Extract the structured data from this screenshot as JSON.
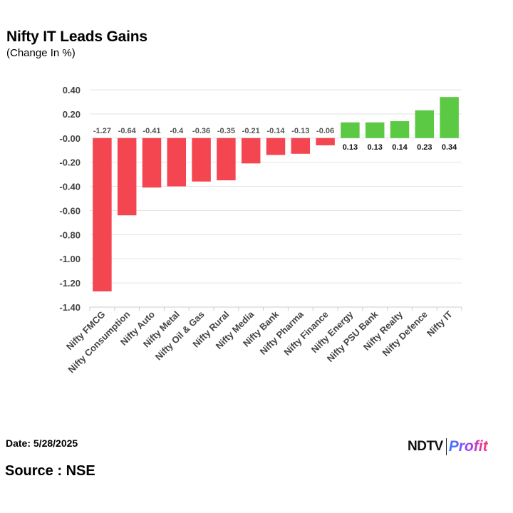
{
  "header": {
    "title": "Nifty IT Leads Gains",
    "subtitle": "(Change In %)"
  },
  "footer": {
    "date": "Date: 5/28/2025",
    "source": "Source : NSE",
    "logo_left": "NDTV",
    "logo_right": "Profit"
  },
  "colors": {
    "negative": "#f44650",
    "positive": "#5bc944",
    "grid": "#e3e3e3",
    "text": "#444444"
  },
  "chart_data": {
    "type": "bar",
    "title": "Nifty IT Leads Gains",
    "subtitle": "(Change In %)",
    "xlabel": "",
    "ylabel": "",
    "ylim": [
      -1.4,
      0.4
    ],
    "yticks": [
      0.4,
      0.2,
      0.0,
      -0.2,
      -0.4,
      -0.6,
      -0.8,
      -1.0,
      -1.2,
      -1.4
    ],
    "ytick_labels": [
      "0.40",
      "0.20",
      "-0.00",
      "-0.20",
      "-0.40",
      "-0.60",
      "-0.80",
      "-1.00",
      "-1.20",
      "-1.40"
    ],
    "grid": true,
    "categories": [
      "Nifty FMCG",
      "Nifty Consumption",
      "Nifty Auto",
      "Nifty Metal",
      "Nifty Oil & Gas",
      "Nifty Rural",
      "Nifty Media",
      "Nifty Bank",
      "Nifty Pharma",
      "Nifty Finance",
      "Nifty Energy",
      "Nifty PSU Bank",
      "Nifty Realty",
      "Nifty Defence",
      "Nifty IT"
    ],
    "values": [
      -1.27,
      -0.64,
      -0.41,
      -0.4,
      -0.36,
      -0.35,
      -0.21,
      -0.14,
      -0.13,
      -0.06,
      0.13,
      0.13,
      0.14,
      0.23,
      0.34
    ],
    "value_labels": [
      "-1.27",
      "-0.64",
      "-0.41",
      "-0.4",
      "-0.36",
      "-0.35",
      "-0.21",
      "-0.14",
      "-0.13",
      "-0.06",
      "0.13",
      "0.13",
      "0.14",
      "0.23",
      "0.34"
    ]
  }
}
